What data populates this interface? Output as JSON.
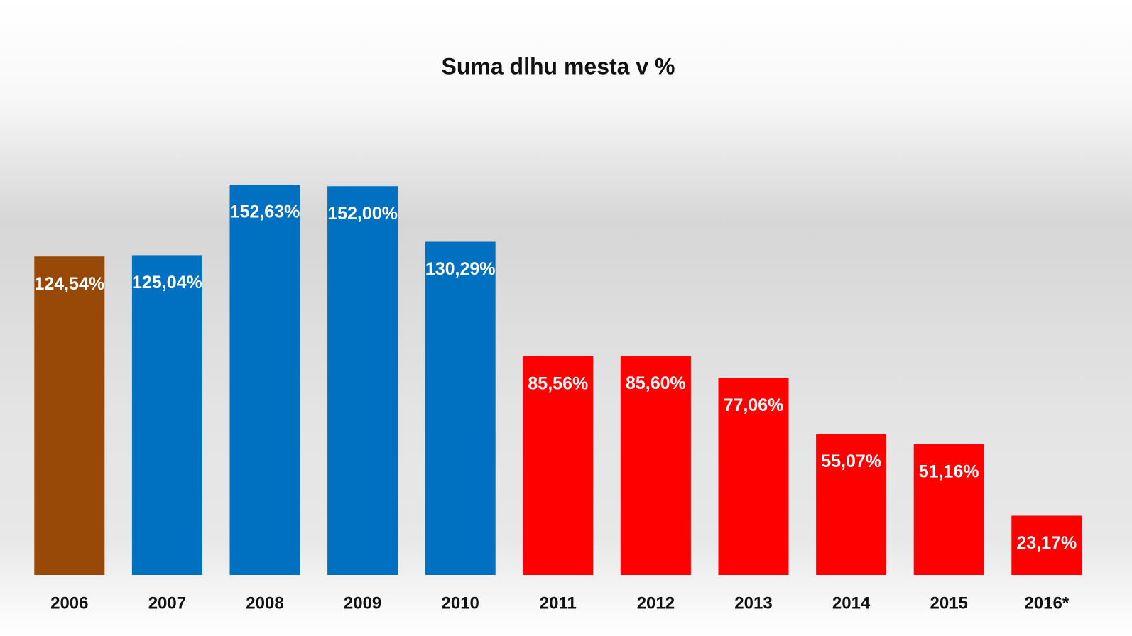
{
  "chart_data": {
    "type": "bar",
    "title": "Suma dlhu mesta v %",
    "categories": [
      "2006",
      "2007",
      "2008",
      "2009",
      "2010",
      "2011",
      "2012",
      "2013",
      "2014",
      "2015",
      "2016*"
    ],
    "values": [
      124.54,
      125.04,
      152.63,
      152.0,
      130.29,
      85.56,
      85.6,
      77.06,
      55.07,
      51.16,
      23.17
    ],
    "value_labels": [
      "124,54%",
      "125,04%",
      "152,63%",
      "152,00%",
      "130,29%",
      "85,56%",
      "85,60%",
      "77,06%",
      "55,07%",
      "51,16%",
      "23,17%"
    ],
    "colors": [
      "#984807",
      "#0070c0",
      "#0070c0",
      "#0070c0",
      "#0070c0",
      "#ff0000",
      "#ff0000",
      "#ff0000",
      "#ff0000",
      "#ff0000",
      "#ff0000"
    ]
  }
}
